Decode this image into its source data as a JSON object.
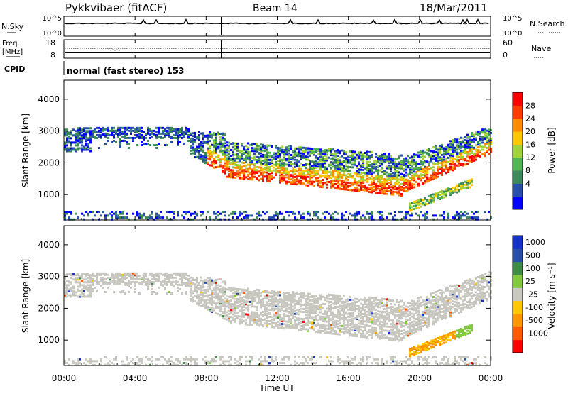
{
  "header": {
    "station": "Pykkvibaer (fitACF)",
    "beam": "Beam 14",
    "date": "18/Mar/2011"
  },
  "nsky_panel": {
    "left_label": "N.Sky",
    "right_label": "N.Search",
    "left_ticks": [
      "10^5",
      "10^0"
    ],
    "right_ticks": [
      "10^5",
      "10^0"
    ]
  },
  "freq_panel": {
    "left_label_top": "Freq.",
    "left_label_unit": "[MHz]",
    "right_label": "Nave",
    "left_ticks": [
      "18",
      "8"
    ],
    "right_ticks": [
      "60",
      "0"
    ]
  },
  "cpid": {
    "label": "CPID",
    "text": "normal (fast stereo) 153"
  },
  "colors": {
    "power_scale": [
      "#0000ff",
      "#2850a8",
      "#3c8a5a",
      "#50b450",
      "#a0d23c",
      "#ffc800",
      "#ff8c00",
      "#ff3c00",
      "#ff0000"
    ],
    "velocity_scale": [
      "#ff0000",
      "#ff5a00",
      "#ff9600",
      "#ffc800",
      "#c8c8c0",
      "#82c83c",
      "#3c8c46",
      "#2850a8",
      "#1432c8"
    ],
    "ground_scatter": "#c8c8c0"
  },
  "chart_data": [
    {
      "type": "heatmap",
      "name": "power",
      "ylabel": "Slant Range [km]",
      "ylim": [
        200,
        4600
      ],
      "yticks": [
        "4000",
        "3000",
        "2000",
        "1000"
      ],
      "yticks_values": [
        4000,
        3000,
        2000,
        1000
      ],
      "colorbar_label": "Power [dB]",
      "colorbar_ticks": [
        "28",
        "24",
        "20",
        "16",
        "12",
        "8",
        "4"
      ],
      "colorbar_range": [
        0,
        32
      ]
    },
    {
      "type": "heatmap",
      "name": "velocity",
      "ylabel": "Slant Range [km]",
      "ylim": [
        200,
        4600
      ],
      "yticks": [
        "4000",
        "3000",
        "2000",
        "1000"
      ],
      "yticks_values": [
        4000,
        3000,
        2000,
        1000
      ],
      "colorbar_label": "Velocity [m s⁻¹]",
      "colorbar_ticks": [
        "1000",
        "500",
        "100",
        "25",
        "-25",
        "-100",
        "-500",
        "-1000"
      ]
    }
  ],
  "xaxis": {
    "label": "Time UT",
    "ticks": [
      "00:00",
      "04:00",
      "08:00",
      "12:00",
      "16:00",
      "20:00",
      "00:00"
    ],
    "tick_hours": [
      0,
      4,
      8,
      12,
      16,
      20,
      24
    ]
  }
}
